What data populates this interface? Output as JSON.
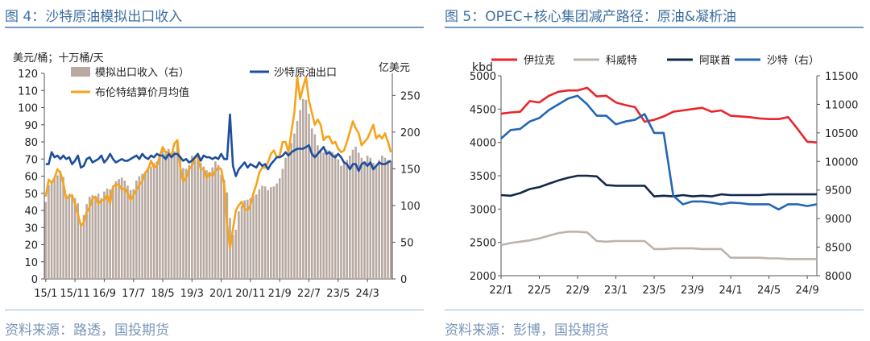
{
  "left_panel": {
    "caption": "图 4：沙特原油模拟出口收入",
    "source": "资料来源：路透，国投期货"
  },
  "right_panel": {
    "caption": "图 5：OPEC+核心集团减产路径：原油&凝析油",
    "source": "资料来源：彭博，国投期货"
  },
  "colors": {
    "caption_blue": "#3d6fa0",
    "bar_tan": "#b8aaa2",
    "navy_line": "#1f4e9c",
    "orange_line": "#f5a41c",
    "red_line": "#e8262c",
    "grey_line": "#bdb3ac",
    "dark_navy": "#14294a",
    "blue_line": "#2366b4"
  },
  "chart_data": [
    {
      "type": "bar+line",
      "title": "",
      "ylabel_left": "美元/桶；十万桶/天",
      "ylabel_right": "亿美元",
      "ylim_left": [
        0,
        120
      ],
      "yticks_left": [
        0,
        10,
        20,
        30,
        40,
        50,
        60,
        70,
        80,
        90,
        100,
        110,
        120
      ],
      "ylim_right": [
        0,
        280
      ],
      "yticks_right": [
        0,
        50,
        100,
        150,
        200,
        250
      ],
      "x_start": "2015-01",
      "xtick_labels": [
        "15/1",
        "15/11",
        "16/9",
        "17/7",
        "18/5",
        "19/3",
        "20/1",
        "20/11",
        "21/9",
        "22/7",
        "23/5",
        "24/3"
      ],
      "grid": false,
      "legend_position": "top-left",
      "legend": {
        "bars": "模拟出口收入（右）",
        "navy": "沙特原油出口",
        "orange": "布伦特结算价月均值"
      },
      "series": [
        {
          "name": "模拟出口收入（右）",
          "axis": "right",
          "kind": "bar",
          "values": [
            105,
            128,
            133,
            137,
            141,
            147,
            139,
            114,
            116,
            113,
            110,
            103,
            75,
            87,
            102,
            112,
            114,
            113,
            116,
            110,
            119,
            123,
            122,
            125,
            133,
            136,
            138,
            134,
            127,
            121,
            122,
            134,
            140,
            143,
            145,
            152,
            153,
            158,
            160,
            168,
            175,
            171,
            177,
            170,
            174,
            185,
            168,
            151,
            150,
            155,
            168,
            162,
            164,
            158,
            153,
            148,
            143,
            152,
            160,
            155,
            142,
            135,
            118,
            83,
            60,
            67,
            92,
            100,
            107,
            108,
            110,
            113,
            115,
            122,
            127,
            126,
            121,
            125,
            126,
            130,
            137,
            150,
            165,
            172,
            185,
            198,
            215,
            230,
            245,
            244,
            225,
            205,
            197,
            182,
            176,
            172,
            176,
            175,
            173,
            170,
            163,
            154,
            158,
            162,
            168,
            176,
            180,
            172,
            165,
            160,
            168,
            165,
            158,
            155,
            162,
            168,
            165,
            162,
            160
          ]
        },
        {
          "name": "沙特原油出口",
          "axis": "left",
          "kind": "line",
          "values": [
            67,
            67,
            74,
            71,
            72,
            70,
            72,
            70,
            71,
            67,
            69,
            72,
            65,
            66,
            70,
            71,
            68,
            69,
            70,
            72,
            68,
            70,
            73,
            70,
            68,
            69,
            70,
            69,
            69,
            70,
            71,
            72,
            70,
            73,
            71,
            70,
            72,
            71,
            73,
            72,
            72,
            70,
            73,
            71,
            73,
            73,
            71,
            69,
            70,
            68,
            69,
            71,
            73,
            69,
            72,
            71,
            71,
            70,
            71,
            70,
            73,
            70,
            70,
            96,
            66,
            60,
            64,
            66,
            68,
            65,
            67,
            66,
            65,
            68,
            66,
            67,
            64,
            67,
            69,
            71,
            71,
            72,
            74,
            72,
            74,
            75,
            76,
            76,
            76,
            77,
            78,
            73,
            71,
            73,
            75,
            77,
            73,
            74,
            72,
            71,
            73,
            71,
            68,
            67,
            64,
            67,
            67,
            63,
            67,
            68,
            66,
            68,
            64,
            66,
            68,
            67,
            67,
            68,
            69
          ]
        },
        {
          "name": "布伦特结算价月均值",
          "axis": "left",
          "kind": "line",
          "values": [
            48,
            58,
            56,
            59,
            64,
            62,
            56,
            47,
            48,
            49,
            44,
            38,
            31,
            33,
            39,
            42,
            47,
            48,
            44,
            46,
            46,
            49,
            44,
            54,
            55,
            55,
            52,
            53,
            50,
            46,
            49,
            52,
            55,
            57,
            62,
            64,
            69,
            65,
            66,
            72,
            77,
            74,
            74,
            72,
            79,
            81,
            65,
            57,
            59,
            64,
            66,
            71,
            71,
            64,
            64,
            59,
            62,
            60,
            63,
            65,
            64,
            55,
            32,
            18,
            29,
            40,
            43,
            45,
            41,
            40,
            43,
            50,
            55,
            62,
            65,
            65,
            68,
            73,
            75,
            71,
            72,
            80,
            80,
            74,
            86,
            97,
            118,
            105,
            112,
            118,
            104,
            97,
            90,
            93,
            90,
            81,
            83,
            83,
            79,
            80,
            76,
            74,
            75,
            80,
            86,
            92,
            88,
            85,
            78,
            80,
            82,
            86,
            90,
            82,
            84,
            82,
            85,
            80,
            74
          ]
        }
      ]
    },
    {
      "type": "line",
      "title": "",
      "ylabel_left": "kbd",
      "ylim_left": [
        2000,
        5000
      ],
      "yticks_left": [
        2000,
        2500,
        3000,
        3500,
        4000,
        4500,
        5000
      ],
      "ylim_right": [
        8000,
        11500
      ],
      "yticks_right": [
        8000,
        8500,
        9000,
        9500,
        10000,
        10500,
        11000,
        11500
      ],
      "x_start": "2022-01",
      "xtick_labels": [
        "22/1",
        "22/5",
        "22/9",
        "23/1",
        "23/5",
        "23/9",
        "24/1",
        "24/5",
        "24/9"
      ],
      "grid": false,
      "legend_position": "top",
      "series": [
        {
          "name": "伊拉克",
          "axis": "left",
          "values": [
            4430,
            4450,
            4460,
            4620,
            4600,
            4700,
            4760,
            4780,
            4780,
            4820,
            4690,
            4700,
            4600,
            4560,
            4530,
            4310,
            4340,
            4390,
            4460,
            4480,
            4500,
            4520,
            4460,
            4480,
            4400,
            4390,
            4380,
            4360,
            4350,
            4350,
            4380,
            4200,
            4010,
            4000
          ]
        },
        {
          "name": "科威特",
          "axis": "left",
          "values": [
            2460,
            2490,
            2510,
            2530,
            2560,
            2600,
            2640,
            2660,
            2660,
            2650,
            2520,
            2510,
            2520,
            2520,
            2520,
            2520,
            2400,
            2400,
            2410,
            2410,
            2410,
            2400,
            2400,
            2400,
            2270,
            2270,
            2270,
            2270,
            2260,
            2260,
            2250,
            2250,
            2250,
            2250
          ]
        },
        {
          "name": "阿联酋",
          "axis": "left",
          "values": [
            3210,
            3200,
            3240,
            3300,
            3330,
            3380,
            3430,
            3470,
            3500,
            3500,
            3490,
            3360,
            3350,
            3350,
            3350,
            3350,
            3190,
            3200,
            3190,
            3210,
            3190,
            3200,
            3190,
            3220,
            3210,
            3210,
            3210,
            3210,
            3220,
            3220,
            3220,
            3220,
            3220,
            3220
          ]
        },
        {
          "name": "沙特（右）",
          "axis": "right",
          "values": [
            10400,
            10550,
            10570,
            10700,
            10760,
            10900,
            11000,
            11100,
            11150,
            11000,
            10800,
            10800,
            10650,
            10700,
            10730,
            10830,
            10500,
            10500,
            9400,
            9250,
            9300,
            9300,
            9280,
            9250,
            9280,
            9270,
            9250,
            9250,
            9250,
            9160,
            9250,
            9250,
            9220,
            9250
          ]
        }
      ]
    }
  ]
}
